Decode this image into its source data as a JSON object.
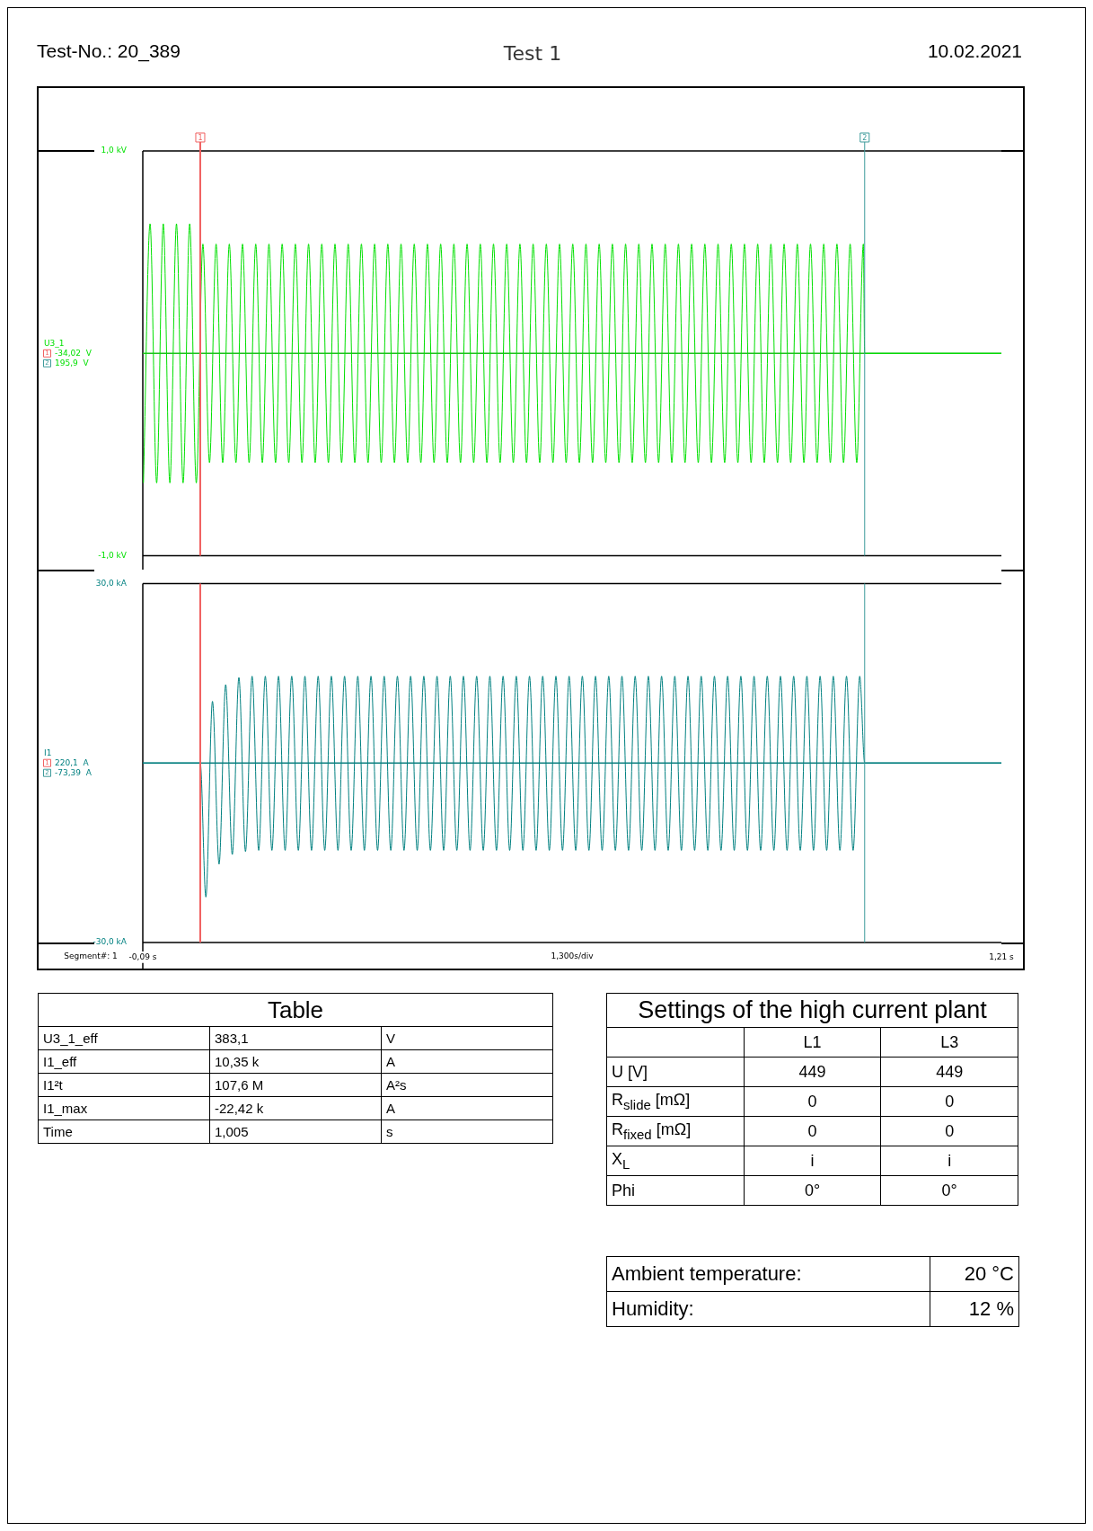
{
  "chart_data": [
    {
      "type": "line",
      "title": "Test 1",
      "annotations": [
        "Test-No.: 20_389",
        "10.02.2021",
        "1",
        "2",
        "-34,02  V",
        "195,9  V"
      ],
      "xlim": [
        -0.09,
        1.21
      ],
      "ylim": [
        -1,
        1
      ],
      "yticks": [
        {
          "value": -1,
          "label": "-1,0 kV"
        },
        {
          "value": 1,
          "label": "1,0 kV"
        }
      ],
      "tick_labels": "y",
      "ref_lines": [
        {
          "axis": "x",
          "value": -0.003,
          "color": "#f06060"
        },
        {
          "axis": "x",
          "value": 1.003,
          "color": "#3d9a9a"
        },
        {
          "axis": "y",
          "value": 0,
          "color": "#20c020"
        }
      ],
      "series": [
        {
          "name": "U3_1",
          "color": "#00e000",
          "x": [
            -0.089,
            -0.079,
            -0.069,
            -0.059,
            -0.049,
            -0.039,
            -0.029,
            -0.019,
            -0.009,
            0.001,
            0.011,
            0.021,
            0.031,
            0.041,
            0.051,
            0.061,
            0.071,
            0.081,
            0.091,
            0.101,
            0.111,
            0.121,
            0.131,
            0.141,
            0.151,
            0.161,
            0.171,
            0.181,
            0.191,
            0.201,
            0.211,
            0.221,
            0.231,
            0.241,
            0.251,
            0.261,
            0.271,
            0.281,
            0.291,
            0.301,
            0.311,
            0.321,
            0.331,
            0.341,
            0.351,
            0.361,
            0.371,
            0.381,
            0.391,
            0.401,
            0.411,
            0.421,
            0.431,
            0.441,
            0.451,
            0.461,
            0.471,
            0.481,
            0.491,
            0.501,
            0.511,
            0.521,
            0.531,
            0.541,
            0.551,
            0.561,
            0.571,
            0.581,
            0.591,
            0.601,
            0.611,
            0.621,
            0.631,
            0.641,
            0.651,
            0.661,
            0.671,
            0.681,
            0.691,
            0.701,
            0.711,
            0.721,
            0.731,
            0.741,
            0.751,
            0.761,
            0.771,
            0.781,
            0.791,
            0.801,
            0.811,
            0.821,
            0.831,
            0.841,
            0.851,
            0.861,
            0.871,
            0.881,
            0.891,
            0.901,
            0.911,
            0.921,
            0.931,
            0.941,
            0.951,
            0.961,
            0.971,
            0.981,
            0.991,
            1.001,
            1.003,
            1.21
          ],
          "values": [
            -0.64,
            0.64,
            -0.64,
            0.64,
            -0.64,
            0.64,
            -0.64,
            0.64,
            -0.64,
            0.54,
            -0.54,
            0.54,
            -0.54,
            0.54,
            -0.54,
            0.54,
            -0.54,
            0.54,
            -0.54,
            0.54,
            -0.54,
            0.54,
            -0.54,
            0.54,
            -0.54,
            0.54,
            -0.54,
            0.54,
            -0.54,
            0.54,
            -0.54,
            0.54,
            -0.54,
            0.54,
            -0.54,
            0.54,
            -0.54,
            0.54,
            -0.54,
            0.54,
            -0.54,
            0.54,
            -0.54,
            0.54,
            -0.54,
            0.54,
            -0.54,
            0.54,
            -0.54,
            0.54,
            -0.54,
            0.54,
            -0.54,
            0.54,
            -0.54,
            0.54,
            -0.54,
            0.54,
            -0.54,
            0.54,
            -0.54,
            0.54,
            -0.54,
            0.54,
            -0.54,
            0.54,
            -0.54,
            0.54,
            -0.54,
            0.54,
            -0.54,
            0.54,
            -0.54,
            0.54,
            -0.54,
            0.54,
            -0.54,
            0.54,
            -0.54,
            0.54,
            -0.54,
            0.54,
            -0.54,
            0.54,
            -0.54,
            0.54,
            -0.54,
            0.54,
            -0.54,
            0.54,
            -0.54,
            0.54,
            -0.54,
            0.54,
            -0.54,
            0.54,
            -0.54,
            0.54,
            -0.54,
            0.54,
            -0.54,
            0.54,
            -0.54,
            0.54,
            -0.54,
            0.54,
            -0.54,
            0.54,
            -0.54,
            0.54,
            0,
            0
          ]
        }
      ]
    },
    {
      "type": "line",
      "annotations": [
        "Segment#: 1",
        "1",
        "2",
        "220,1  A",
        "-73,39  A"
      ],
      "xlim": [
        -0.09,
        1.21
      ],
      "xlabel": "1,300s/div",
      "xticks": [
        {
          "value": -0.09,
          "label": "-0,09 s"
        },
        {
          "value": 1.21,
          "label": "1,21 s"
        }
      ],
      "ylim": [
        -30,
        30
      ],
      "yticks": [
        {
          "value": -30,
          "label": "-30,0 kA"
        },
        {
          "value": 30,
          "label": "30,0 kA"
        }
      ],
      "ref_lines": [
        {
          "axis": "x",
          "value": -0.003,
          "color": "#f06060"
        },
        {
          "axis": "x",
          "value": 1.003,
          "color": "#3d9a9a"
        },
        {
          "axis": "y",
          "value": 0,
          "color": "#108080"
        }
      ],
      "series": [
        {
          "name": "I1",
          "color": "#008080",
          "x": [
            -0.09,
            -0.003,
            0.0055,
            0.0155,
            0.0255,
            0.0355,
            0.0455,
            0.0555,
            0.0655,
            0.0755,
            0.0855,
            0.0955,
            0.1055,
            0.1155,
            0.1255,
            0.1355,
            0.1455,
            0.1555,
            0.1655,
            0.1755,
            0.1855,
            0.1955,
            0.2055,
            0.2155,
            0.2255,
            0.2355,
            0.2455,
            0.2555,
            0.2655,
            0.2755,
            0.2855,
            0.2955,
            0.3055,
            0.3155,
            0.3255,
            0.3355,
            0.3455,
            0.3555,
            0.3655,
            0.3755,
            0.3855,
            0.3955,
            0.4055,
            0.4155,
            0.4255,
            0.4355,
            0.4455,
            0.4555,
            0.4655,
            0.4755,
            0.4855,
            0.4955,
            0.5055,
            0.5155,
            0.5255,
            0.5355,
            0.5455,
            0.5555,
            0.5655,
            0.5755,
            0.5855,
            0.5955,
            0.6055,
            0.6155,
            0.6255,
            0.6355,
            0.6455,
            0.6555,
            0.6655,
            0.6755,
            0.6855,
            0.6955,
            0.7055,
            0.7155,
            0.7255,
            0.7355,
            0.7455,
            0.7555,
            0.7655,
            0.7755,
            0.7855,
            0.7955,
            0.8055,
            0.8155,
            0.8255,
            0.8355,
            0.8455,
            0.8555,
            0.8655,
            0.8755,
            0.8855,
            0.8955,
            0.9055,
            0.9155,
            0.9255,
            0.9355,
            0.9455,
            0.9555,
            0.9655,
            0.9755,
            0.9855,
            0.9955,
            1.003,
            1.21
          ],
          "values": [
            0,
            0,
            -22.4,
            10.3,
            -16.9,
            13.1,
            -15.3,
            14.3,
            -14.8,
            14.5,
            -14.6,
            14.5,
            -14.6,
            14.5,
            -14.6,
            14.5,
            -14.6,
            14.5,
            -14.6,
            14.5,
            -14.6,
            14.5,
            -14.6,
            14.5,
            -14.6,
            14.5,
            -14.6,
            14.5,
            -14.6,
            14.5,
            -14.6,
            14.5,
            -14.6,
            14.5,
            -14.6,
            14.5,
            -14.6,
            14.5,
            -14.6,
            14.5,
            -14.6,
            14.5,
            -14.6,
            14.5,
            -14.6,
            14.5,
            -14.6,
            14.5,
            -14.6,
            14.5,
            -14.6,
            14.5,
            -14.6,
            14.5,
            -14.6,
            14.5,
            -14.6,
            14.5,
            -14.6,
            14.5,
            -14.6,
            14.5,
            -14.6,
            14.5,
            -14.6,
            14.5,
            -14.6,
            14.5,
            -14.6,
            14.5,
            -14.6,
            14.5,
            -14.6,
            14.5,
            -14.6,
            14.5,
            -14.6,
            14.5,
            -14.6,
            14.5,
            -14.6,
            14.5,
            -14.6,
            14.5,
            -14.6,
            14.5,
            -14.6,
            14.5,
            -14.6,
            14.5,
            -14.6,
            14.5,
            -14.6,
            14.5,
            -14.6,
            14.5,
            -14.6,
            14.5,
            -14.6,
            14.5,
            -14.6,
            14.5,
            0,
            0
          ]
        }
      ]
    },
    {
      "type": "other",
      "title": "Table",
      "y_categories": [
        "U3_1_eff",
        "I1_eff",
        "I1²t",
        "I1_max",
        "Time"
      ],
      "cell_labels": [
        [
          "383,1",
          "V"
        ],
        [
          "10,35 k",
          "A"
        ],
        [
          "107,6 M",
          "A²s"
        ],
        [
          "-22,42 k",
          "A"
        ],
        [
          "1,005",
          "s"
        ]
      ]
    },
    {
      "type": "other",
      "title": "Settings of the high current plant",
      "categories": [
        "L1",
        "L3"
      ],
      "y_categories": [
        "U [V]",
        "R$_{slide}$ [mΩ]",
        "R$_{fixed}$ [mΩ]",
        "X$_{L}$",
        "Phi"
      ],
      "cell_labels": [
        [
          "449",
          "449"
        ],
        [
          "0",
          "0"
        ],
        [
          "0",
          "0"
        ],
        [
          "i",
          "i"
        ],
        [
          "0°",
          "0°"
        ]
      ]
    },
    {
      "type": "other",
      "y_categories": [
        "Ambient temperature:",
        "Humidity:"
      ],
      "cell_labels": [
        [
          "20 °C"
        ],
        [
          "12 %"
        ]
      ]
    }
  ]
}
